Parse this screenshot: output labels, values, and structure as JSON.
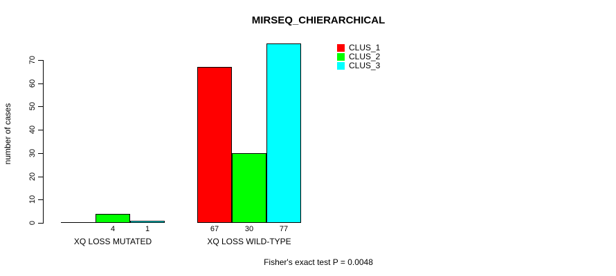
{
  "chart_data": {
    "type": "bar",
    "title": "MIRSEQ_CHIERARCHICAL",
    "xlabel": "",
    "ylabel": "number of cases",
    "ylim": [
      0,
      70
    ],
    "yticks": [
      0,
      10,
      20,
      30,
      40,
      50,
      60,
      70
    ],
    "grid": false,
    "categories": [
      "XQ LOSS MUTATED",
      "XQ LOSS WILD-TYPE"
    ],
    "series": [
      {
        "name": "CLUS_1",
        "color": "#ff0000",
        "values": [
          0,
          67
        ]
      },
      {
        "name": "CLUS_2",
        "color": "#00ff00",
        "values": [
          4,
          30
        ]
      },
      {
        "name": "CLUS_3",
        "color": "#00ffff",
        "values": [
          1,
          77
        ]
      }
    ],
    "bar_labels": [
      [
        "",
        "4",
        "1"
      ],
      [
        "67",
        "30",
        "77"
      ]
    ],
    "legend": {
      "position": "top-right",
      "entries": [
        "CLUS_1",
        "CLUS_2",
        "CLUS_3"
      ]
    },
    "annotation": "Fisher's exact test P = 0.0048"
  }
}
